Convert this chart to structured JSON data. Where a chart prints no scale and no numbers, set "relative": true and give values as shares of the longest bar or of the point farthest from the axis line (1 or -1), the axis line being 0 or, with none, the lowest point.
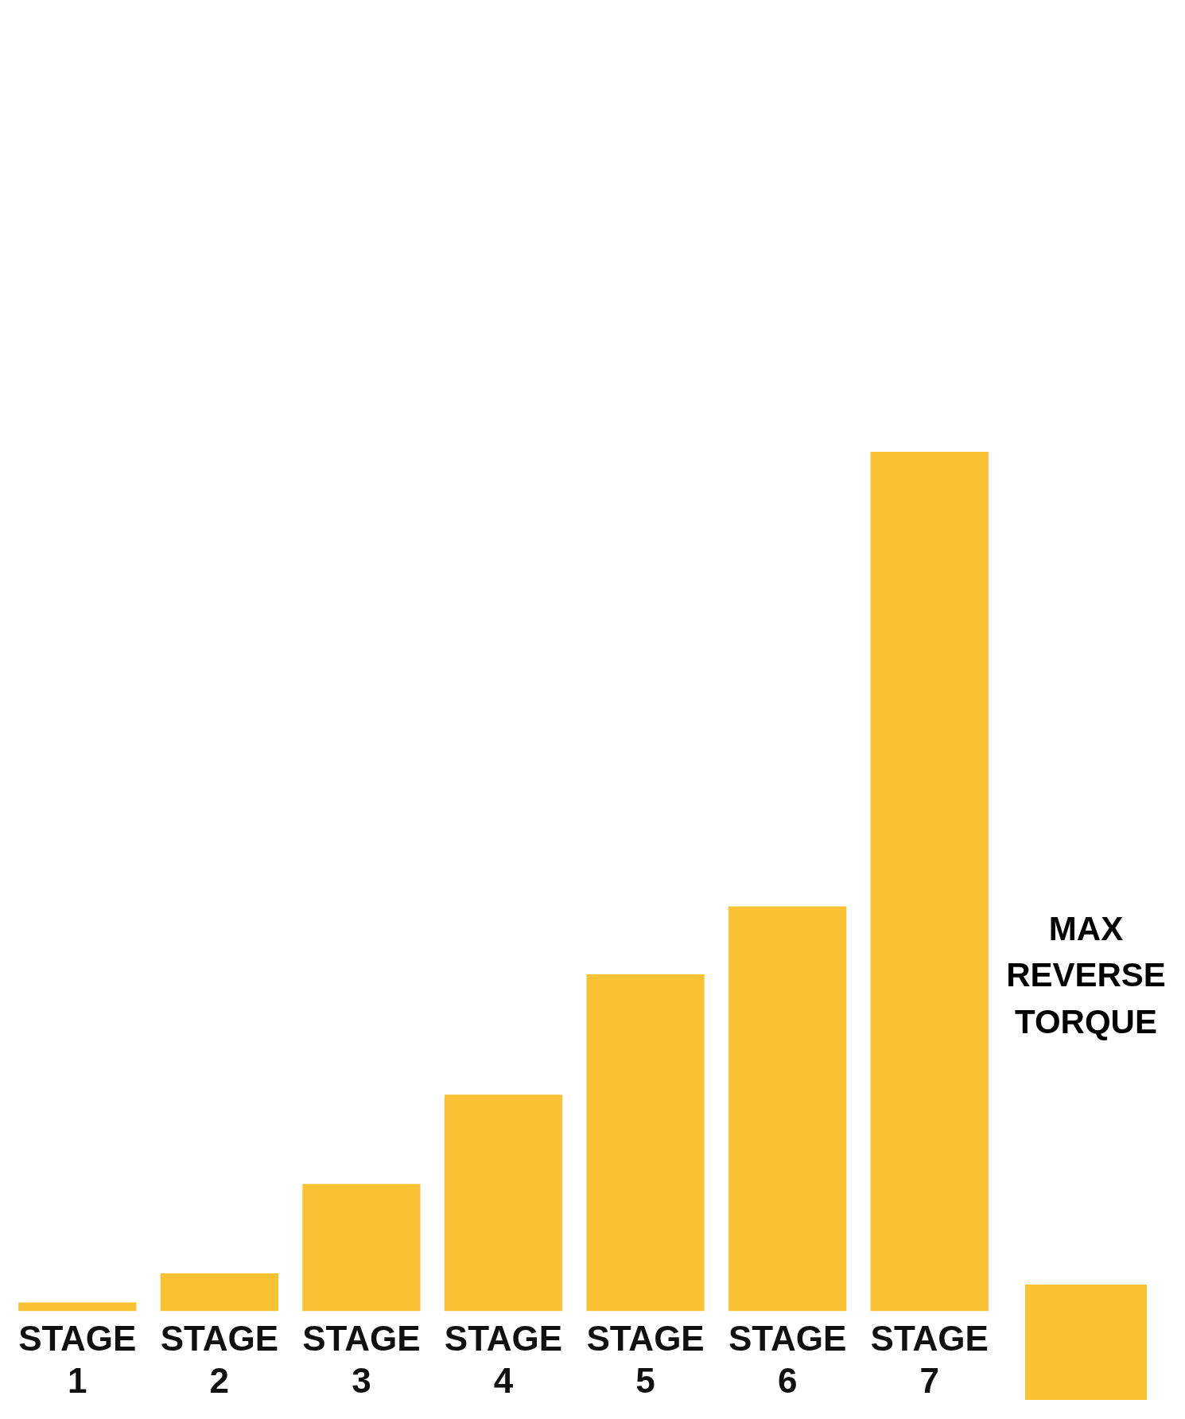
{
  "chart_data": {
    "type": "bar",
    "relative": true,
    "categories": [
      "STAGE 1",
      "STAGE 2",
      "STAGE 3",
      "STAGE 4",
      "STAGE 5",
      "STAGE 6",
      "STAGE 7"
    ],
    "series": [
      {
        "name": "MAX REVERSE TORQUE",
        "color": "#fbc134",
        "values": [
          0.01,
          0.044,
          0.148,
          0.252,
          0.392,
          0.471,
          1
        ]
      }
    ],
    "legend": "bottom right"
  }
}
